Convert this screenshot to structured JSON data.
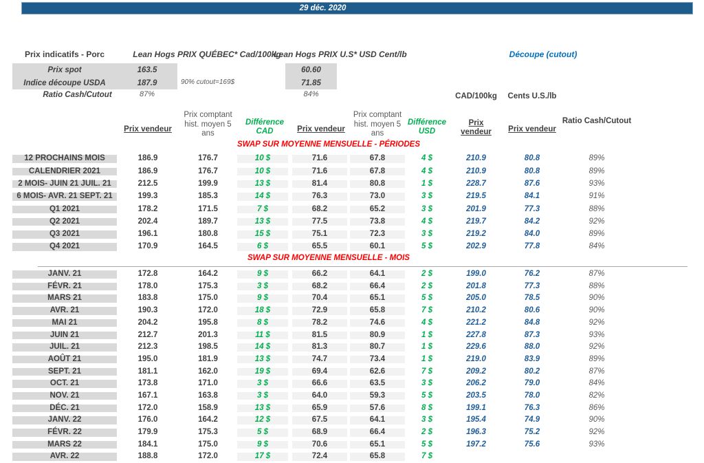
{
  "title_bar": {
    "date": "29 déc. 2020"
  },
  "colors": {
    "bar_blue": "#1e5c8b",
    "banner_red": "#ff0000",
    "difference_green": "#00b050",
    "cutout_blue": "#1f5c99",
    "cutout_title_blue": "#0070c0",
    "label_bg_gray": "#d9d9d9",
    "shade_gray": "#f2f2f2",
    "text_dark": "#404040"
  },
  "header": {
    "product_label": "Prix indicatifs - Porc",
    "quebec_title": "Lean Hogs PRIX QUÉBEC* Cad/100kg",
    "us_title": "Lean Hogs PRIX U.S* USD Cent/lb",
    "cutout_title": "Découpe (cutout)",
    "spot_label": "Prix spot",
    "spot_cad": "163.5",
    "spot_us": "60.60",
    "usda_label": "Indice découpe USDA",
    "usda_cad": "187.9",
    "usda_note": "90% cutout=169$",
    "usda_us": "71.85",
    "ratio_label": "Ratio Cash/Cutout",
    "ratio_cad": "87%",
    "ratio_us": "84%",
    "unit_cad": "CAD/100kg",
    "unit_us": "Cents U.S./lb"
  },
  "columns": {
    "pv_cad": "Prix vendeur",
    "pc_cad": "Prix comptant hist. moyen 5 ans",
    "diff_cad": "Différence CAD",
    "pv_usd": "Prix vendeur",
    "pc_usd": "Prix comptant hist. moyen 5 ans",
    "diff_usd": "Différence USD",
    "cutout_pv_cad": "Prix vendeur",
    "cutout_pv_usd": "Prix vendeur",
    "ratio": "Ratio Cash/Cutout"
  },
  "sections": [
    {
      "banner": "SWAP SUR MOYENNE MENSUELLE - PÉRIODES",
      "rows": [
        {
          "label": "12 PROCHAINS MOIS",
          "pv_cad": "186.9",
          "pc_cad": "176.7",
          "diff_cad": "10 $",
          "pv_usd": "71.6",
          "pc_usd": "67.8",
          "diff_usd": "4 $",
          "cutout_cad": "210.9",
          "cutout_usd": "80.8",
          "ratio": "89%"
        },
        {
          "label": "CALENDRIER 2021",
          "pv_cad": "186.9",
          "pc_cad": "176.7",
          "diff_cad": "10 $",
          "pv_usd": "71.6",
          "pc_usd": "67.8",
          "diff_usd": "4 $",
          "cutout_cad": "210.9",
          "cutout_usd": "80.8",
          "ratio": "89%"
        },
        {
          "label": "2 MOIS- JUIN 21 JUIL. 21",
          "pv_cad": "212.5",
          "pc_cad": "199.9",
          "diff_cad": "13 $",
          "pv_usd": "81.4",
          "pc_usd": "80.8",
          "diff_usd": "1 $",
          "cutout_cad": "228.7",
          "cutout_usd": "87.6",
          "ratio": "93%"
        },
        {
          "label": "6 MOIS- AVR. 21 SEPT. 21",
          "pv_cad": "199.3",
          "pc_cad": "185.3",
          "diff_cad": "14 $",
          "pv_usd": "76.3",
          "pc_usd": "73.0",
          "diff_usd": "3 $",
          "cutout_cad": "219.5",
          "cutout_usd": "84.1",
          "ratio": "91%"
        },
        {
          "label": "Q1 2021",
          "pv_cad": "178.2",
          "pc_cad": "171.5",
          "diff_cad": "7 $",
          "pv_usd": "68.2",
          "pc_usd": "65.2",
          "diff_usd": "3 $",
          "cutout_cad": "201.9",
          "cutout_usd": "77.3",
          "ratio": "88%"
        },
        {
          "label": "Q2 2021",
          "pv_cad": "202.4",
          "pc_cad": "189.7",
          "diff_cad": "13 $",
          "pv_usd": "77.5",
          "pc_usd": "73.8",
          "diff_usd": "4 $",
          "cutout_cad": "219.7",
          "cutout_usd": "84.2",
          "ratio": "92%"
        },
        {
          "label": "Q3 2021",
          "pv_cad": "196.1",
          "pc_cad": "180.8",
          "diff_cad": "15 $",
          "pv_usd": "75.1",
          "pc_usd": "72.3",
          "diff_usd": "3 $",
          "cutout_cad": "219.2",
          "cutout_usd": "84.0",
          "ratio": "89%"
        },
        {
          "label": "Q4 2021",
          "pv_cad": "170.9",
          "pc_cad": "164.5",
          "diff_cad": "6 $",
          "pv_usd": "65.5",
          "pc_usd": "60.1",
          "diff_usd": "5 $",
          "cutout_cad": "202.9",
          "cutout_usd": "77.8",
          "ratio": "84%"
        }
      ]
    },
    {
      "banner": "SWAP SUR MOYENNE MENSUELLE - MOIS",
      "rows": [
        {
          "label": "JANV. 21",
          "pv_cad": "172.8",
          "pc_cad": "164.2",
          "diff_cad": "9 $",
          "pv_usd": "66.2",
          "pc_usd": "64.1",
          "diff_usd": "2 $",
          "cutout_cad": "199.0",
          "cutout_usd": "76.2",
          "ratio": "87%"
        },
        {
          "label": "FÉVR. 21",
          "pv_cad": "178.0",
          "pc_cad": "175.3",
          "diff_cad": "3 $",
          "pv_usd": "68.2",
          "pc_usd": "66.4",
          "diff_usd": "2 $",
          "cutout_cad": "201.8",
          "cutout_usd": "77.3",
          "ratio": "88%"
        },
        {
          "label": "MARS 21",
          "pv_cad": "183.8",
          "pc_cad": "175.0",
          "diff_cad": "9 $",
          "pv_usd": "70.4",
          "pc_usd": "65.1",
          "diff_usd": "5 $",
          "cutout_cad": "205.0",
          "cutout_usd": "78.5",
          "ratio": "90%"
        },
        {
          "label": "AVR. 21",
          "pv_cad": "190.3",
          "pc_cad": "172.0",
          "diff_cad": "18 $",
          "pv_usd": "72.9",
          "pc_usd": "65.8",
          "diff_usd": "7 $",
          "cutout_cad": "210.2",
          "cutout_usd": "80.6",
          "ratio": "90%"
        },
        {
          "label": "MAI 21",
          "pv_cad": "204.2",
          "pc_cad": "195.8",
          "diff_cad": "8 $",
          "pv_usd": "78.2",
          "pc_usd": "74.6",
          "diff_usd": "4 $",
          "cutout_cad": "221.2",
          "cutout_usd": "84.8",
          "ratio": "92%"
        },
        {
          "label": "JUIN 21",
          "pv_cad": "212.7",
          "pc_cad": "201.3",
          "diff_cad": "11 $",
          "pv_usd": "81.5",
          "pc_usd": "80.9",
          "diff_usd": "1 $",
          "cutout_cad": "227.8",
          "cutout_usd": "87.3",
          "ratio": "93%"
        },
        {
          "label": "JUIL. 21",
          "pv_cad": "212.3",
          "pc_cad": "198.5",
          "diff_cad": "14 $",
          "pv_usd": "81.3",
          "pc_usd": "80.7",
          "diff_usd": "1 $",
          "cutout_cad": "229.6",
          "cutout_usd": "88.0",
          "ratio": "92%"
        },
        {
          "label": "AOÛT 21",
          "pv_cad": "195.0",
          "pc_cad": "181.9",
          "diff_cad": "13 $",
          "pv_usd": "74.7",
          "pc_usd": "73.4",
          "diff_usd": "1 $",
          "cutout_cad": "219.0",
          "cutout_usd": "83.9",
          "ratio": "89%"
        },
        {
          "label": "SEPT. 21",
          "pv_cad": "181.1",
          "pc_cad": "162.0",
          "diff_cad": "19 $",
          "pv_usd": "69.4",
          "pc_usd": "62.6",
          "diff_usd": "7 $",
          "cutout_cad": "209.2",
          "cutout_usd": "80.2",
          "ratio": "87%"
        },
        {
          "label": "OCT. 21",
          "pv_cad": "173.8",
          "pc_cad": "171.0",
          "diff_cad": "3 $",
          "pv_usd": "66.6",
          "pc_usd": "63.5",
          "diff_usd": "3 $",
          "cutout_cad": "206.2",
          "cutout_usd": "79.0",
          "ratio": "84%"
        },
        {
          "label": "NOV. 21",
          "pv_cad": "167.1",
          "pc_cad": "163.8",
          "diff_cad": "3 $",
          "pv_usd": "64.0",
          "pc_usd": "59.3",
          "diff_usd": "5 $",
          "cutout_cad": "203.5",
          "cutout_usd": "78.0",
          "ratio": "82%"
        },
        {
          "label": "DÉC. 21",
          "pv_cad": "172.0",
          "pc_cad": "158.9",
          "diff_cad": "13 $",
          "pv_usd": "65.9",
          "pc_usd": "57.6",
          "diff_usd": "8 $",
          "cutout_cad": "199.1",
          "cutout_usd": "76.3",
          "ratio": "86%"
        },
        {
          "label": "JANV. 22",
          "pv_cad": "176.0",
          "pc_cad": "164.2",
          "diff_cad": "12 $",
          "pv_usd": "67.5",
          "pc_usd": "64.1",
          "diff_usd": "3 $",
          "cutout_cad": "195.4",
          "cutout_usd": "74.9",
          "ratio": "90%"
        },
        {
          "label": "FÉVR. 22",
          "pv_cad": "179.9",
          "pc_cad": "175.3",
          "diff_cad": "5 $",
          "pv_usd": "68.9",
          "pc_usd": "66.4",
          "diff_usd": "2 $",
          "cutout_cad": "196.3",
          "cutout_usd": "75.2",
          "ratio": "92%"
        },
        {
          "label": "MARS 22",
          "pv_cad": "184.1",
          "pc_cad": "175.0",
          "diff_cad": "9 $",
          "pv_usd": "70.6",
          "pc_usd": "65.1",
          "diff_usd": "5 $",
          "cutout_cad": "197.2",
          "cutout_usd": "75.6",
          "ratio": "93%"
        },
        {
          "label": "AVR. 22",
          "pv_cad": "188.8",
          "pc_cad": "172.0",
          "diff_cad": "17 $",
          "pv_usd": "72.4",
          "pc_usd": "65.8",
          "diff_usd": "7 $",
          "cutout_cad": "",
          "cutout_usd": "",
          "ratio": ""
        }
      ]
    }
  ]
}
